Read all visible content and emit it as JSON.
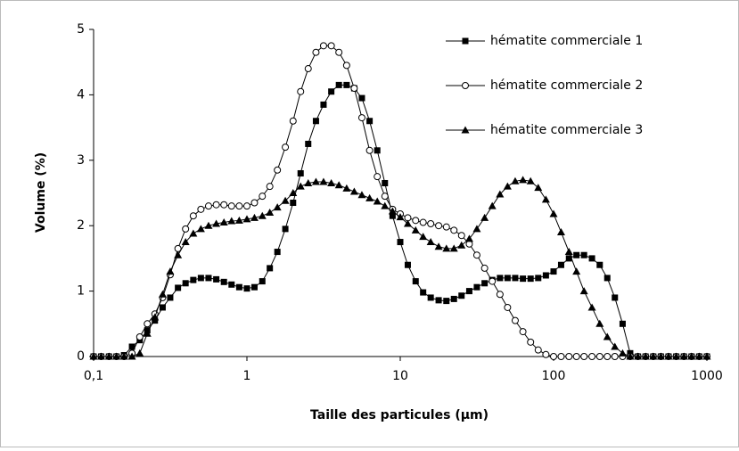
{
  "chart_data": {
    "type": "line",
    "xscale": "log",
    "x_label": "Taille des particules (µm)",
    "y_label": "Volume (%)",
    "x": [
      0.1,
      0.112,
      0.126,
      0.141,
      0.158,
      0.178,
      0.2,
      0.224,
      0.251,
      0.282,
      0.316,
      0.355,
      0.398,
      0.447,
      0.501,
      0.562,
      0.631,
      0.708,
      0.794,
      0.891,
      1,
      1.12,
      1.26,
      1.41,
      1.58,
      1.78,
      2,
      2.24,
      2.51,
      2.82,
      3.16,
      3.55,
      3.98,
      4.47,
      5.01,
      5.62,
      6.31,
      7.08,
      7.94,
      8.91,
      10,
      11.2,
      12.6,
      14.1,
      15.8,
      17.8,
      20,
      22.4,
      25.1,
      28.2,
      31.6,
      35.5,
      39.8,
      44.7,
      50.1,
      56.2,
      63.1,
      70.8,
      79.4,
      89.1,
      100,
      112,
      126,
      141,
      158,
      178,
      200,
      224,
      251,
      282,
      316,
      355,
      398,
      447,
      501,
      562,
      631,
      708,
      794,
      891,
      1000
    ],
    "series": [
      {
        "name": "hématite commerciale 1",
        "color": "#000000",
        "marker": "square",
        "values": [
          0,
          0,
          0,
          0,
          0.02,
          0.15,
          0.25,
          0.4,
          0.55,
          0.75,
          0.9,
          1.05,
          1.12,
          1.17,
          1.2,
          1.2,
          1.18,
          1.14,
          1.1,
          1.06,
          1.04,
          1.06,
          1.15,
          1.35,
          1.6,
          1.95,
          2.35,
          2.8,
          3.25,
          3.6,
          3.85,
          4.05,
          4.15,
          4.15,
          4.1,
          3.95,
          3.6,
          3.15,
          2.65,
          2.15,
          1.75,
          1.4,
          1.15,
          0.98,
          0.9,
          0.86,
          0.85,
          0.88,
          0.93,
          1.0,
          1.06,
          1.12,
          1.17,
          1.2,
          1.2,
          1.2,
          1.19,
          1.19,
          1.2,
          1.24,
          1.3,
          1.4,
          1.5,
          1.55,
          1.55,
          1.5,
          1.4,
          1.2,
          0.9,
          0.5,
          0.05,
          0,
          0,
          0,
          0,
          0,
          0,
          0,
          0,
          0,
          0
        ]
      },
      {
        "name": "hématite commerciale 2",
        "color": "#000000",
        "marker": "circle",
        "values": [
          0,
          0,
          0,
          0,
          0,
          0.05,
          0.3,
          0.5,
          0.65,
          0.9,
          1.25,
          1.65,
          1.95,
          2.15,
          2.25,
          2.3,
          2.32,
          2.32,
          2.3,
          2.3,
          2.3,
          2.35,
          2.45,
          2.6,
          2.85,
          3.2,
          3.6,
          4.05,
          4.4,
          4.65,
          4.75,
          4.75,
          4.65,
          4.45,
          4.1,
          3.65,
          3.15,
          2.75,
          2.45,
          2.25,
          2.18,
          2.12,
          2.08,
          2.05,
          2.03,
          2.0,
          1.98,
          1.93,
          1.85,
          1.72,
          1.55,
          1.35,
          1.15,
          0.95,
          0.75,
          0.55,
          0.38,
          0.22,
          0.1,
          0.03,
          0,
          0,
          0,
          0,
          0,
          0,
          0,
          0,
          0,
          0,
          0,
          0,
          0,
          0,
          0,
          0,
          0,
          0,
          0,
          0,
          0
        ]
      },
      {
        "name": "hématite commerciale 3",
        "color": "#000000",
        "marker": "triangle",
        "values": [
          0,
          0,
          0,
          0,
          0,
          0,
          0.05,
          0.35,
          0.6,
          0.95,
          1.3,
          1.55,
          1.75,
          1.88,
          1.95,
          2.0,
          2.03,
          2.05,
          2.07,
          2.08,
          2.1,
          2.12,
          2.15,
          2.2,
          2.28,
          2.38,
          2.5,
          2.6,
          2.65,
          2.67,
          2.67,
          2.65,
          2.62,
          2.57,
          2.52,
          2.47,
          2.42,
          2.37,
          2.3,
          2.22,
          2.13,
          2.03,
          1.93,
          1.83,
          1.75,
          1.68,
          1.65,
          1.65,
          1.7,
          1.8,
          1.95,
          2.12,
          2.3,
          2.48,
          2.6,
          2.68,
          2.7,
          2.68,
          2.58,
          2.4,
          2.18,
          1.9,
          1.6,
          1.3,
          1.0,
          0.75,
          0.5,
          0.3,
          0.15,
          0.05,
          0,
          0,
          0,
          0,
          0,
          0,
          0,
          0,
          0,
          0,
          0
        ]
      }
    ],
    "xlim": [
      0.1,
      1000
    ],
    "xticks": [
      {
        "value": 0.1,
        "label": "0,1"
      },
      1,
      10,
      100,
      1000
    ],
    "ylim": [
      0,
      5
    ],
    "yticks": [
      0,
      1,
      2,
      3,
      4,
      5
    ],
    "legend": "upper right"
  }
}
